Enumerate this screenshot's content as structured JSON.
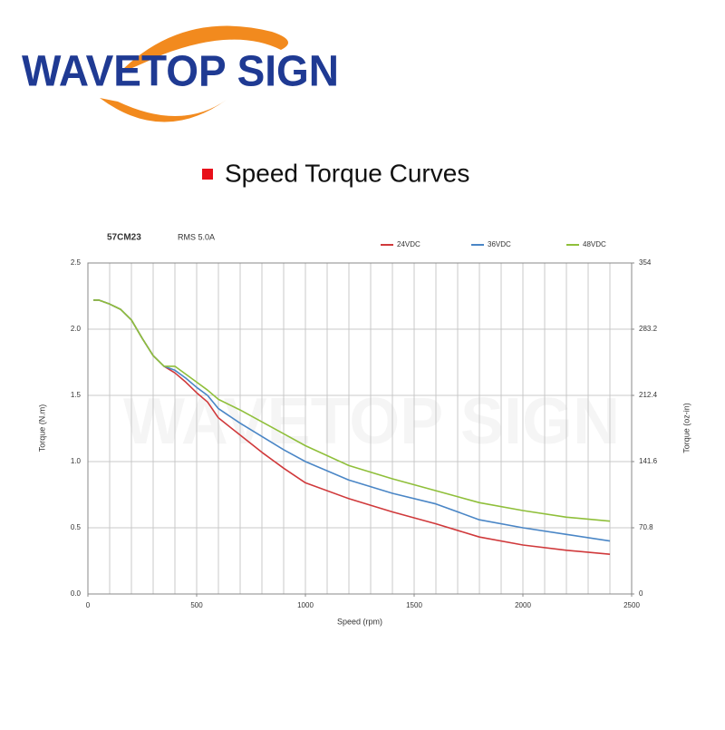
{
  "logo": {
    "text": "WAVETOP SIGN"
  },
  "heading": "Speed Torque Curves",
  "chart_data": {
    "type": "line",
    "title": "57CM23",
    "subtitle": "RMS 5.0A",
    "watermark": "WAVETOP SIGN",
    "x_label": "Speed (rpm)",
    "y_label": "Torque (N.m)",
    "y2_label": "Torque (oz-in)",
    "x": [
      25,
      50,
      100,
      150,
      200,
      250,
      300,
      350,
      400,
      450,
      500,
      550,
      600,
      700,
      800,
      900,
      1000,
      1200,
      1400,
      1600,
      1800,
      2000,
      2200,
      2400
    ],
    "series": [
      {
        "name": "24VDC",
        "color": "#d0393b",
        "values": [
          2.22,
          2.22,
          2.19,
          2.15,
          2.07,
          1.93,
          1.8,
          1.72,
          1.67,
          1.6,
          1.52,
          1.45,
          1.33,
          1.2,
          1.07,
          0.95,
          0.84,
          0.72,
          0.62,
          0.53,
          0.43,
          0.37,
          0.33,
          0.3
        ]
      },
      {
        "name": "36VDC",
        "color": "#4a86c6",
        "values": [
          2.22,
          2.22,
          2.19,
          2.15,
          2.07,
          1.93,
          1.8,
          1.72,
          1.69,
          1.63,
          1.56,
          1.5,
          1.4,
          1.29,
          1.19,
          1.09,
          1.0,
          0.86,
          0.76,
          0.68,
          0.56,
          0.5,
          0.45,
          0.4
        ]
      },
      {
        "name": "48VDC",
        "color": "#8fbf3a",
        "values": [
          2.22,
          2.22,
          2.19,
          2.15,
          2.07,
          1.93,
          1.8,
          1.72,
          1.72,
          1.66,
          1.6,
          1.54,
          1.47,
          1.39,
          1.3,
          1.21,
          1.12,
          0.97,
          0.87,
          0.78,
          0.69,
          0.63,
          0.58,
          0.55
        ]
      }
    ],
    "xlim": [
      0,
      2500
    ],
    "xticks": [
      0,
      500,
      1000,
      1500,
      2000,
      2500
    ],
    "x_grid": [
      100,
      200,
      300,
      400,
      500,
      600,
      700,
      800,
      900,
      1000,
      1100,
      1200,
      1300,
      1400,
      1500,
      1600,
      1700,
      1800,
      1900,
      2000,
      2100,
      2200,
      2300,
      2400
    ],
    "ylim": [
      0,
      2.5
    ],
    "yticks": [
      {
        "value": 0,
        "label": "0.0"
      },
      0.5,
      {
        "value": 1,
        "label": "1.0"
      },
      1.5,
      {
        "value": 2,
        "label": "2.0"
      },
      2.5
    ],
    "y2lim": [
      0,
      354
    ],
    "y2ticks": [
      0,
      70.8,
      141.6,
      212.4,
      283.2,
      354
    ],
    "grid": true,
    "legend": "top"
  }
}
